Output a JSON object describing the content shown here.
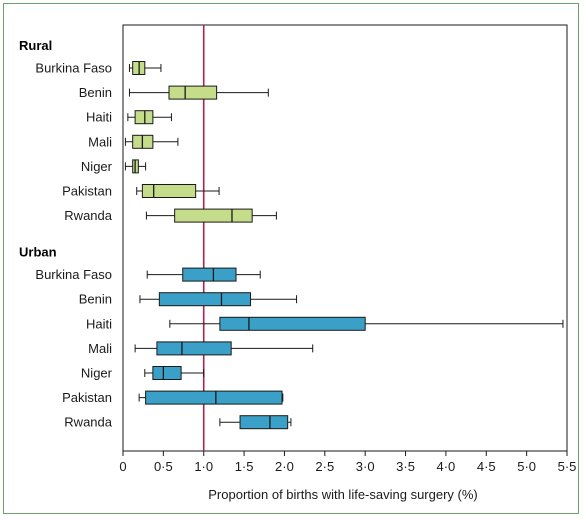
{
  "chart_data": {
    "type": "boxplot",
    "xlabel": "Proportion of births with life-saving surgery (%)",
    "xlim": [
      0,
      5.5
    ],
    "xticks": [
      0,
      0.5,
      1.0,
      1.5,
      2.0,
      2.5,
      3.0,
      3.5,
      4.0,
      4.5,
      5.0,
      5.5
    ],
    "xtick_labels": [
      "0",
      "0·5",
      "1·0",
      "1·5",
      "2·0",
      "2·5",
      "3·0",
      "3·5",
      "4·0",
      "4·5",
      "5·0",
      "5·5"
    ],
    "reference_line": 1.0,
    "reference_color": "#b0234a",
    "groups": [
      {
        "name": "Rural",
        "color": "#c5dc8a",
        "rows": [
          {
            "label": "Burkina Faso",
            "min": 0.08,
            "q1": 0.12,
            "median": 0.2,
            "q3": 0.27,
            "max": 0.47
          },
          {
            "label": "Benin",
            "min": 0.08,
            "q1": 0.57,
            "median": 0.77,
            "q3": 1.16,
            "max": 1.8
          },
          {
            "label": "Haiti",
            "min": 0.06,
            "q1": 0.15,
            "median": 0.27,
            "q3": 0.37,
            "max": 0.6
          },
          {
            "label": "Mali",
            "min": 0.03,
            "q1": 0.12,
            "median": 0.24,
            "q3": 0.37,
            "max": 0.68
          },
          {
            "label": "Niger",
            "min": 0.03,
            "q1": 0.12,
            "median": 0.15,
            "q3": 0.19,
            "max": 0.28
          },
          {
            "label": "Pakistan",
            "min": 0.17,
            "q1": 0.24,
            "median": 0.38,
            "q3": 0.9,
            "max": 1.19
          },
          {
            "label": "Rwanda",
            "min": 0.29,
            "q1": 0.64,
            "median": 1.35,
            "q3": 1.6,
            "max": 1.9
          }
        ]
      },
      {
        "name": "Urban",
        "color": "#3aa0c8",
        "rows": [
          {
            "label": "Burkina Faso",
            "min": 0.3,
            "q1": 0.74,
            "median": 1.12,
            "q3": 1.4,
            "max": 1.7
          },
          {
            "label": "Benin",
            "min": 0.21,
            "q1": 0.45,
            "median": 1.22,
            "q3": 1.58,
            "max": 2.15
          },
          {
            "label": "Haiti",
            "min": 0.58,
            "q1": 1.2,
            "median": 1.56,
            "q3": 3.0,
            "max": 5.45
          },
          {
            "label": "Mali",
            "min": 0.15,
            "q1": 0.42,
            "median": 0.73,
            "q3": 1.34,
            "max": 2.35
          },
          {
            "label": "Niger",
            "min": 0.27,
            "q1": 0.37,
            "median": 0.5,
            "q3": 0.72,
            "max": 1.0
          },
          {
            "label": "Pakistan",
            "min": 0.2,
            "q1": 0.28,
            "median": 1.15,
            "q3": 1.97,
            "max": 1.98
          },
          {
            "label": "Rwanda",
            "min": 1.2,
            "q1": 1.45,
            "median": 1.82,
            "q3": 2.04,
            "max": 2.08
          }
        ]
      }
    ]
  }
}
